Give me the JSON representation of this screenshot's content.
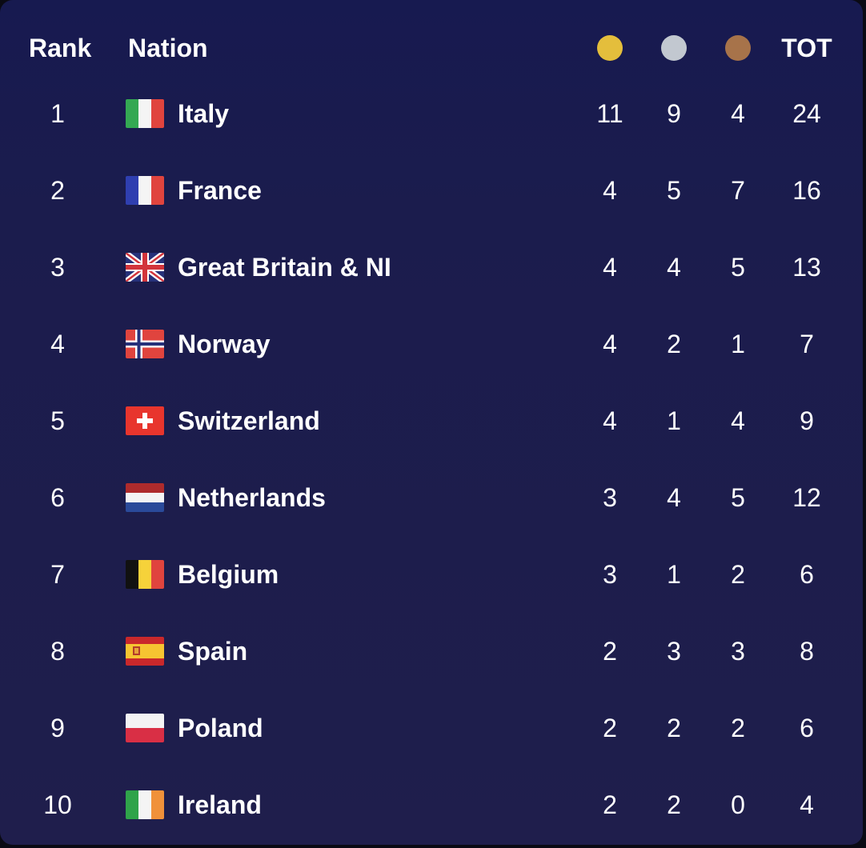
{
  "header": {
    "rank_label": "Rank",
    "nation_label": "Nation",
    "total_label": "TOT",
    "medal_icons": [
      "gold-medal-icon",
      "silver-medal-icon",
      "bronze-medal-icon"
    ],
    "medal_colors": {
      "gold": "#e4be3c",
      "silver": "#c2c8d0",
      "bronze": "#a7734a"
    }
  },
  "rows": [
    {
      "rank": "1",
      "nation": "Italy",
      "flag": "italy-flag-icon",
      "gold": "11",
      "silver": "9",
      "bronze": "4",
      "total": "24"
    },
    {
      "rank": "2",
      "nation": "France",
      "flag": "france-flag-icon",
      "gold": "4",
      "silver": "5",
      "bronze": "7",
      "total": "16"
    },
    {
      "rank": "3",
      "nation": "Great Britain & NI",
      "flag": "great-britain-flag-icon",
      "gold": "4",
      "silver": "4",
      "bronze": "5",
      "total": "13"
    },
    {
      "rank": "4",
      "nation": "Norway",
      "flag": "norway-flag-icon",
      "gold": "4",
      "silver": "2",
      "bronze": "1",
      "total": "7"
    },
    {
      "rank": "5",
      "nation": "Switzerland",
      "flag": "switzerland-flag-icon",
      "gold": "4",
      "silver": "1",
      "bronze": "4",
      "total": "9"
    },
    {
      "rank": "6",
      "nation": "Netherlands",
      "flag": "netherlands-flag-icon",
      "gold": "3",
      "silver": "4",
      "bronze": "5",
      "total": "12"
    },
    {
      "rank": "7",
      "nation": "Belgium",
      "flag": "belgium-flag-icon",
      "gold": "3",
      "silver": "1",
      "bronze": "2",
      "total": "6"
    },
    {
      "rank": "8",
      "nation": "Spain",
      "flag": "spain-flag-icon",
      "gold": "2",
      "silver": "3",
      "bronze": "3",
      "total": "8"
    },
    {
      "rank": "9",
      "nation": "Poland",
      "flag": "poland-flag-icon",
      "gold": "2",
      "silver": "2",
      "bronze": "2",
      "total": "6"
    },
    {
      "rank": "10",
      "nation": "Ireland",
      "flag": "ireland-flag-icon",
      "gold": "2",
      "silver": "2",
      "bronze": "0",
      "total": "4"
    }
  ]
}
